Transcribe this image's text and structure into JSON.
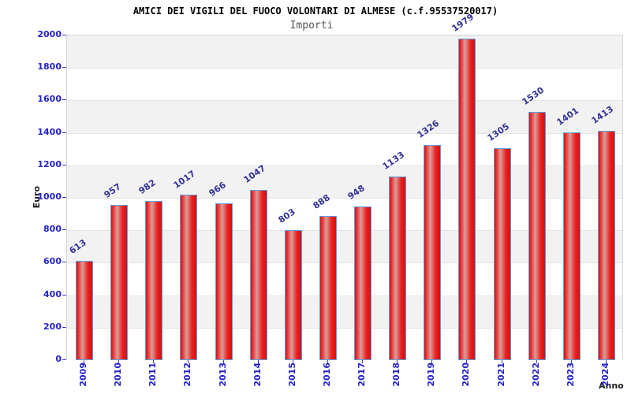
{
  "chart_data": {
    "type": "bar",
    "title": "AMICI DEI VIGILI DEL FUOCO VOLONTARI DI ALMESE (c.f.95537520017)",
    "subtitle": "Importi",
    "xlabel": "Anno",
    "ylabel": "Euro",
    "categories": [
      "2009",
      "2010",
      "2011",
      "2012",
      "2013",
      "2014",
      "2015",
      "2016",
      "2017",
      "2018",
      "2019",
      "2020",
      "2021",
      "2022",
      "2023",
      "2024"
    ],
    "values": [
      613,
      957,
      982,
      1017,
      966,
      1047,
      803,
      888,
      948,
      1133,
      1326,
      1979,
      1305,
      1530,
      1401,
      1413
    ],
    "ylim": [
      0,
      2000
    ],
    "ytick_step": 200,
    "legend_position": "none",
    "grid": "horizontal bands alternating, gridline every 200",
    "bar_labels_rotated_deg": -35,
    "x_labels_rotated_deg": -90,
    "colors": {
      "bar_red": "#e32020",
      "bar_highlight": "#d89e9a",
      "bar_border": "#5ca2e2",
      "axis_tick_label_blue": "#2323cc",
      "value_label_navy": "#32329b",
      "band_gray": "#f2f2f2",
      "band_white": "#ffffff",
      "gridline": "#e4e4e4",
      "plot_border": "#d6d6d6",
      "title_black": "#000000",
      "subtitle_gray": "#565656"
    }
  }
}
